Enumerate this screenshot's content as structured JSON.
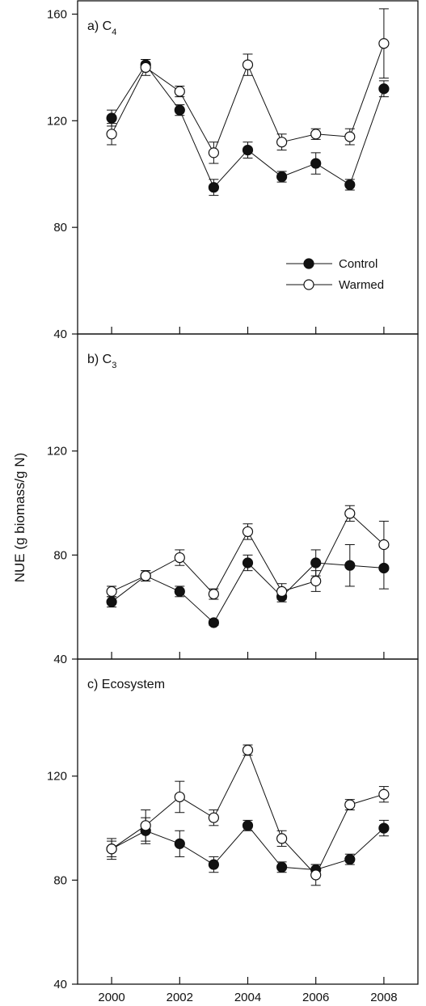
{
  "ylabel": "NUE (g biomass/g N)",
  "x_ticks": [
    "2000",
    "2002",
    "2004",
    "2006",
    "2008"
  ],
  "legend": {
    "control": "Control",
    "warmed": "Warmed"
  },
  "colors": {
    "control": "#111111",
    "warmed": "#ffffff",
    "axis": "#111111"
  },
  "chart_data": [
    {
      "type": "line",
      "title": "a) C4",
      "title_main": "a) C",
      "title_sub": "4",
      "x": [
        2000,
        2001,
        2002,
        2003,
        2004,
        2005,
        2006,
        2007,
        2008
      ],
      "xlim": [
        1999,
        2009
      ],
      "ylim": [
        40,
        165
      ],
      "yticks": [
        40,
        80,
        120,
        160
      ],
      "legend_position": "right",
      "series": [
        {
          "name": "Control",
          "values": [
            121,
            141,
            124,
            95,
            109,
            99,
            104,
            96,
            132
          ],
          "err": [
            3,
            2,
            2,
            3,
            3,
            2,
            4,
            2,
            3
          ]
        },
        {
          "name": "Warmed",
          "values": [
            115,
            140,
            131,
            108,
            141,
            112,
            115,
            114,
            149
          ],
          "err": [
            4,
            3,
            2,
            4,
            4,
            3,
            2,
            3,
            13
          ]
        }
      ]
    },
    {
      "type": "line",
      "title": "b) C3",
      "title_main": "b) C",
      "title_sub": "3",
      "x": [
        2000,
        2001,
        2002,
        2003,
        2004,
        2005,
        2006,
        2007,
        2008
      ],
      "xlim": [
        1999,
        2009
      ],
      "ylim": [
        40,
        165
      ],
      "yticks": [
        40,
        80,
        120
      ],
      "series": [
        {
          "name": "Control",
          "values": [
            62,
            72,
            66,
            54,
            77,
            64,
            77,
            76,
            75
          ],
          "err": [
            2,
            2,
            2,
            1,
            3,
            2,
            5,
            8,
            8
          ]
        },
        {
          "name": "Warmed",
          "values": [
            66,
            72,
            79,
            65,
            89,
            66,
            70,
            96,
            84
          ],
          "err": [
            2,
            2,
            3,
            2,
            3,
            3,
            4,
            3,
            9
          ]
        }
      ]
    },
    {
      "type": "line",
      "title": "c) Ecosystem",
      "x": [
        2000,
        2001,
        2002,
        2003,
        2004,
        2005,
        2006,
        2007,
        2008
      ],
      "xlim": [
        1999,
        2009
      ],
      "ylim": [
        40,
        165
      ],
      "yticks": [
        40,
        80,
        120
      ],
      "series": [
        {
          "name": "Control",
          "values": [
            92,
            99,
            94,
            86,
            101,
            85,
            84,
            88,
            100
          ],
          "err": [
            4,
            5,
            5,
            3,
            2,
            2,
            2,
            2,
            3
          ]
        },
        {
          "name": "Warmed",
          "values": [
            92,
            101,
            112,
            104,
            130,
            96,
            82,
            109,
            113
          ],
          "err": [
            3,
            6,
            6,
            3,
            2,
            3,
            4,
            2,
            3
          ]
        }
      ]
    }
  ]
}
